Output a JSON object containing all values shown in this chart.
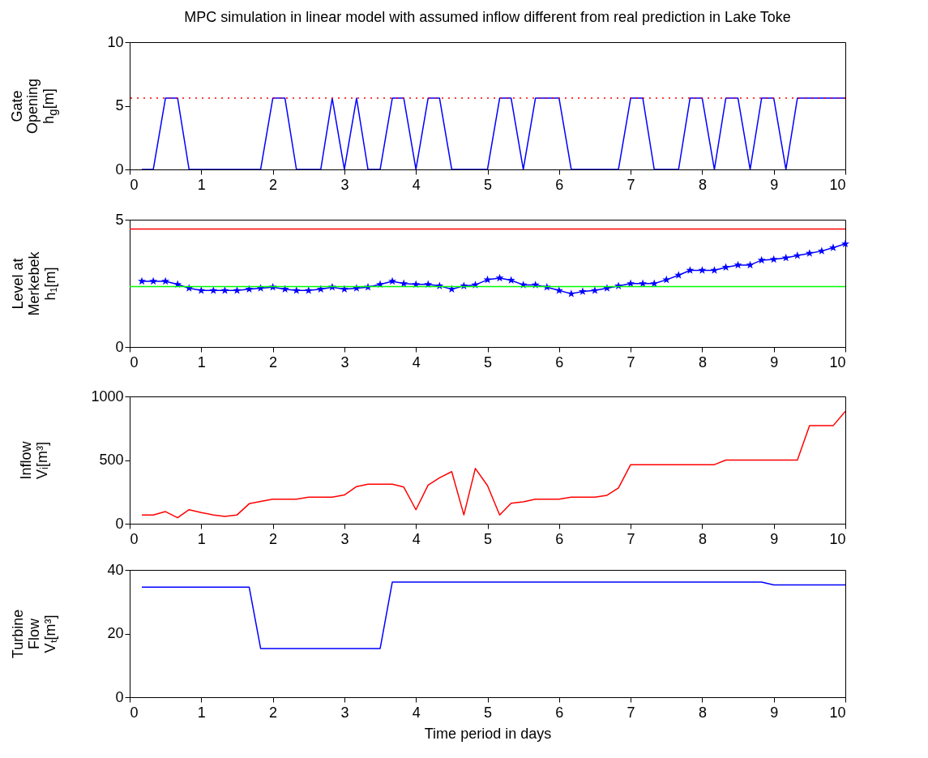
{
  "chart_data": [
    {
      "type": "line",
      "title": "MPC simulation in linear model with assumed inflow different from real prediction in Lake Toke",
      "ylabel": "Gate\nOpening\nh$_{g}$[m]",
      "x": [
        0.17,
        0.33,
        0.5,
        0.67,
        0.83,
        1,
        1.17,
        1.33,
        1.5,
        1.67,
        1.83,
        2,
        2.17,
        2.33,
        2.5,
        2.67,
        2.83,
        3,
        3.17,
        3.33,
        3.5,
        3.67,
        3.83,
        4,
        4.17,
        4.33,
        4.5,
        4.67,
        4.83,
        5,
        5.17,
        5.33,
        5.5,
        5.67,
        5.83,
        6,
        6.17,
        6.33,
        6.5,
        6.67,
        6.83,
        7,
        7.17,
        7.33,
        7.5,
        7.67,
        7.83,
        8,
        8.17,
        8.33,
        8.5,
        8.67,
        8.83,
        9,
        9.17,
        9.33,
        9.5,
        9.67,
        9.83,
        10
      ],
      "series": [
        {
          "color": "#0000ff",
          "values": [
            0,
            0,
            5.6,
            5.6,
            0,
            0,
            0,
            0,
            0,
            0,
            0,
            5.6,
            5.6,
            0,
            0,
            0,
            5.6,
            0,
            5.6,
            0,
            0,
            5.6,
            5.6,
            0,
            5.6,
            5.6,
            0,
            0,
            0,
            0,
            5.6,
            5.6,
            0,
            5.6,
            5.6,
            5.6,
            0,
            0,
            0,
            0,
            0,
            5.6,
            5.6,
            0,
            0,
            0,
            5.6,
            5.6,
            0,
            5.6,
            5.6,
            0,
            5.6,
            5.6,
            0,
            5.6,
            5.6,
            5.6,
            5.6,
            5.6
          ]
        }
      ],
      "xlim": [
        0,
        10
      ],
      "xticks": [
        0,
        1,
        2,
        3,
        4,
        5,
        6,
        7,
        8,
        9,
        10
      ],
      "ylim": [
        0,
        10
      ],
      "yticks": [
        0,
        5,
        10
      ],
      "ref_lines": [
        {
          "axis": "y",
          "value": 5.6,
          "color": "#ff0000",
          "line_style": "dotted"
        }
      ]
    },
    {
      "type": "line",
      "ylabel": "Level at\nMerkebek\nh₁[m]",
      "marker": "star",
      "x": [
        0.17,
        0.33,
        0.5,
        0.67,
        0.83,
        1,
        1.17,
        1.33,
        1.5,
        1.67,
        1.83,
        2,
        2.17,
        2.33,
        2.5,
        2.67,
        2.83,
        3,
        3.17,
        3.33,
        3.5,
        3.67,
        3.83,
        4,
        4.17,
        4.33,
        4.5,
        4.67,
        4.83,
        5,
        5.17,
        5.33,
        5.5,
        5.67,
        5.83,
        6,
        6.17,
        6.33,
        6.5,
        6.67,
        6.83,
        7,
        7.17,
        7.33,
        7.5,
        7.67,
        7.83,
        8,
        8.17,
        8.33,
        8.5,
        8.67,
        8.83,
        9,
        9.17,
        9.33,
        9.5,
        9.67,
        9.83,
        10
      ],
      "series": [
        {
          "color": "#0000ff",
          "values": [
            2.58,
            2.58,
            2.58,
            2.46,
            2.31,
            2.22,
            2.22,
            2.22,
            2.22,
            2.27,
            2.31,
            2.35,
            2.27,
            2.22,
            2.22,
            2.27,
            2.35,
            2.27,
            2.31,
            2.35,
            2.46,
            2.58,
            2.49,
            2.46,
            2.46,
            2.4,
            2.27,
            2.4,
            2.44,
            2.64,
            2.71,
            2.62,
            2.44,
            2.44,
            2.35,
            2.22,
            2.09,
            2.18,
            2.22,
            2.31,
            2.4,
            2.49,
            2.49,
            2.49,
            2.64,
            2.82,
            3.01,
            3.01,
            3.01,
            3.13,
            3.22,
            3.22,
            3.41,
            3.44,
            3.5,
            3.59,
            3.68,
            3.77,
            3.9,
            4.05
          ]
        }
      ],
      "xlim": [
        0,
        10
      ],
      "xticks": [
        0,
        1,
        2,
        3,
        4,
        5,
        6,
        7,
        8,
        9,
        10
      ],
      "ylim": [
        0,
        5
      ],
      "yticks": [
        0,
        5
      ],
      "ref_lines": [
        {
          "axis": "y",
          "value": 4.63,
          "color": "#ff0000",
          "line_style": "solid"
        },
        {
          "axis": "y",
          "value": 2.37,
          "color": "#00ff00",
          "line_style": "solid"
        }
      ]
    },
    {
      "type": "line",
      "ylabel": "Inflow\nVᵢ[m³]",
      "x": [
        0.17,
        0.33,
        0.5,
        0.67,
        0.83,
        1,
        1.17,
        1.33,
        1.5,
        1.67,
        1.83,
        2,
        2.17,
        2.33,
        2.5,
        2.67,
        2.83,
        3,
        3.17,
        3.33,
        3.5,
        3.67,
        3.83,
        4,
        4.17,
        4.33,
        4.5,
        4.67,
        4.83,
        5,
        5.17,
        5.33,
        5.5,
        5.67,
        5.83,
        6,
        6.17,
        6.33,
        6.5,
        6.67,
        6.83,
        7,
        7.17,
        7.33,
        7.5,
        7.67,
        7.83,
        8,
        8.17,
        8.33,
        8.5,
        8.67,
        8.83,
        9,
        9.17,
        9.33,
        9.5,
        9.67,
        9.83,
        10
      ],
      "series": [
        {
          "color": "#ff0000",
          "values": [
            69,
            69,
            95,
            47,
            110,
            88,
            69,
            58,
            69,
            157,
            175,
            193,
            193,
            193,
            208,
            208,
            208,
            226,
            292,
            310,
            310,
            310,
            288,
            110,
            303,
            361,
            409,
            69,
            434,
            299,
            69,
            161,
            172,
            193,
            193,
            193,
            208,
            208,
            208,
            223,
            281,
            464,
            464,
            464,
            464,
            464,
            464,
            464,
            464,
            500,
            500,
            500,
            500,
            500,
            500,
            500,
            770,
            770,
            770,
            883
          ]
        }
      ],
      "xlim": [
        0,
        10
      ],
      "xticks": [
        0,
        1,
        2,
        3,
        4,
        5,
        6,
        7,
        8,
        9,
        10
      ],
      "ylim": [
        0,
        1000
      ],
      "yticks": [
        0,
        500,
        1000
      ]
    },
    {
      "type": "line",
      "ylabel": "Turbine\nFlow\nVₜ[m³]",
      "xlabel": "Time period in days",
      "x": [
        0.17,
        0.33,
        0.5,
        0.67,
        0.83,
        1,
        1.17,
        1.33,
        1.5,
        1.67,
        1.83,
        2,
        2.17,
        2.33,
        2.5,
        2.67,
        2.83,
        3,
        3.17,
        3.33,
        3.5,
        3.67,
        3.83,
        4,
        4.17,
        4.33,
        4.5,
        4.67,
        4.83,
        5,
        5.17,
        5.33,
        5.5,
        5.67,
        5.83,
        6,
        6.17,
        6.33,
        6.5,
        6.67,
        6.83,
        7,
        7.17,
        7.33,
        7.5,
        7.67,
        7.83,
        8,
        8.17,
        8.33,
        8.5,
        8.67,
        8.83,
        9,
        9.17,
        9.33,
        9.5,
        9.67,
        9.83,
        10
      ],
      "series": [
        {
          "color": "#0000ff",
          "values": [
            34.6,
            34.6,
            34.6,
            34.6,
            34.6,
            34.6,
            34.6,
            34.6,
            34.6,
            34.6,
            15.3,
            15.3,
            15.3,
            15.3,
            15.3,
            15.3,
            15.3,
            15.3,
            15.3,
            15.3,
            15.3,
            36.2,
            36.2,
            36.2,
            36.2,
            36.2,
            36.2,
            36.2,
            36.2,
            36.2,
            36.2,
            36.2,
            36.2,
            36.2,
            36.2,
            36.2,
            36.2,
            36.2,
            36.2,
            36.2,
            36.2,
            36.2,
            36.2,
            36.2,
            36.2,
            36.2,
            36.2,
            36.2,
            36.2,
            36.2,
            36.2,
            36.2,
            36.2,
            35.3,
            35.3,
            35.3,
            35.3,
            35.3,
            35.3,
            35.3
          ]
        }
      ],
      "xlim": [
        0,
        10
      ],
      "xticks": [
        0,
        1,
        2,
        3,
        4,
        5,
        6,
        7,
        8,
        9,
        10
      ],
      "ylim": [
        0,
        40
      ],
      "yticks": [
        0,
        20,
        40
      ]
    }
  ]
}
